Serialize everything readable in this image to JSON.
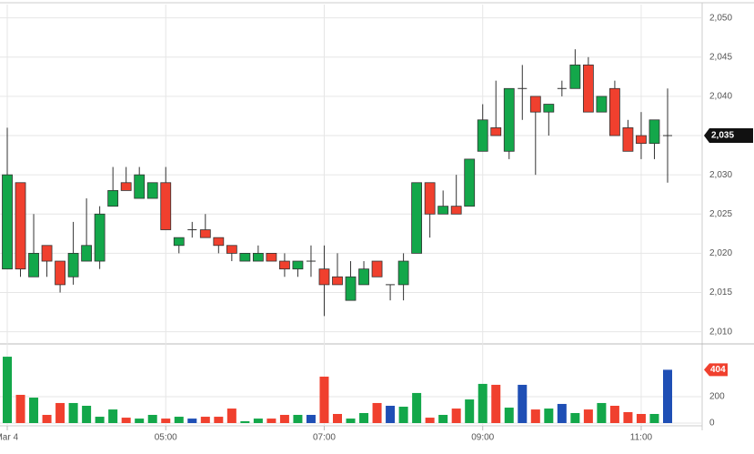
{
  "chart_data": {
    "type": "candlestick",
    "categories": [
      "Mar 4",
      null,
      null,
      null,
      null,
      null,
      null,
      null,
      null,
      null,
      null,
      null,
      "05:00",
      null,
      null,
      null,
      null,
      null,
      null,
      null,
      null,
      null,
      null,
      null,
      "07:00",
      null,
      null,
      null,
      null,
      null,
      null,
      null,
      null,
      null,
      null,
      null,
      "09:00",
      null,
      null,
      null,
      null,
      null,
      null,
      null,
      null,
      null,
      null,
      null,
      "11:00",
      null,
      null
    ],
    "open": [
      2018,
      2029,
      2017,
      2021,
      2019,
      2017,
      2019,
      2019,
      2026,
      2029,
      2027,
      2027,
      2029,
      2021,
      2023,
      2023,
      2022,
      2021,
      2019,
      2019,
      2020,
      2019,
      2018,
      2019,
      2018,
      2017,
      2014,
      2016,
      2019,
      2016,
      2016,
      2020,
      2029,
      2025,
      2026,
      2026,
      2033,
      2036,
      2033,
      2041,
      2040,
      2038,
      2041,
      2041,
      2044,
      2038,
      2041,
      2036,
      2035,
      2034,
      2035
    ],
    "high": [
      2036,
      2029,
      2025,
      2021,
      2019,
      2024,
      2027,
      2026,
      2031,
      2031,
      2031,
      2029,
      2031,
      2022,
      2024,
      2025,
      2022,
      2021,
      2020,
      2021,
      2020,
      2020,
      2019,
      2021,
      2021,
      2020,
      2019,
      2019,
      2019,
      2016,
      2020,
      2029,
      2029,
      2028,
      2030,
      2032,
      2039,
      2042,
      2041,
      2044,
      2040,
      2039,
      2042,
      2046,
      2045,
      2040,
      2042,
      2037,
      2038,
      2037,
      2041
    ],
    "low": [
      2018,
      2017,
      2017,
      2017,
      2015,
      2016,
      2019,
      2018,
      2026,
      2028,
      2027,
      2027,
      2023,
      2020,
      2022,
      2022,
      2020,
      2019,
      2019,
      2019,
      2019,
      2017,
      2017,
      2017,
      2012,
      2016,
      2014,
      2016,
      2017,
      2014,
      2014,
      2020,
      2022,
      2025,
      2025,
      2026,
      2033,
      2035,
      2032,
      2037,
      2030,
      2035,
      2040,
      2041,
      2038,
      2038,
      2035,
      2033,
      2032,
      2032,
      2029
    ],
    "close": [
      2030,
      2018,
      2020,
      2019,
      2016,
      2020,
      2021,
      2025,
      2028,
      2028,
      2030,
      2029,
      2023,
      2022,
      2023,
      2022,
      2021,
      2020,
      2020,
      2020,
      2019,
      2018,
      2019,
      2019,
      2016,
      2016,
      2017,
      2018,
      2017,
      2016,
      2019,
      2029,
      2025,
      2026,
      2025,
      2032,
      2037,
      2035,
      2041,
      2041,
      2038,
      2039,
      2041,
      2044,
      2038,
      2040,
      2035,
      2033,
      2034,
      2037,
      2035
    ],
    "volume": [
      503,
      214,
      193,
      62,
      152,
      152,
      131,
      48,
      103,
      41,
      34,
      62,
      34,
      48,
      34,
      48,
      48,
      110,
      14,
      34,
      34,
      62,
      62,
      62,
      352,
      69,
      34,
      76,
      152,
      131,
      124,
      228,
      41,
      62,
      110,
      179,
      297,
      290,
      117,
      290,
      103,
      110,
      145,
      76,
      103,
      152,
      131,
      83,
      69,
      69,
      404
    ],
    "up_color": "#13a74a",
    "down_color": "#f0402e",
    "flat_color": "#1f4fb5",
    "ylim": [
      2008.8,
      2051.7
    ],
    "yticks": [
      {
        "value": 2010,
        "label": "2,010"
      },
      {
        "value": 2015,
        "label": "2,015"
      },
      {
        "value": 2020,
        "label": "2,020"
      },
      {
        "value": 2025,
        "label": "2,025"
      },
      {
        "value": 2030,
        "label": "2,030"
      },
      {
        "value": 2035,
        "label": "2,035"
      },
      {
        "value": 2040,
        "label": "2,040"
      },
      {
        "value": 2045,
        "label": "2,045"
      },
      {
        "value": 2050,
        "label": "2,050"
      }
    ],
    "price_tag": {
      "value": 2035,
      "label": "2,035"
    },
    "volume_ylim": [
      0,
      600
    ],
    "volume_yticks": [
      0,
      200
    ],
    "volume_tag": 404,
    "grid": true
  }
}
